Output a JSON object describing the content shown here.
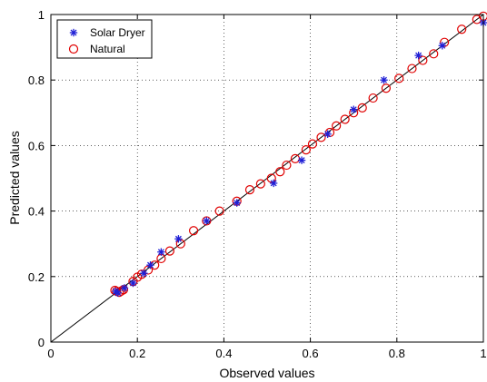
{
  "chart_data": {
    "type": "scatter",
    "xlabel": "Observed values",
    "ylabel": "Predicted values",
    "xlim": [
      0,
      1
    ],
    "ylim": [
      0,
      1
    ],
    "xticks": [
      "0",
      "0.2",
      "0.4",
      "0.6",
      "0.8",
      "1"
    ],
    "yticks": [
      "0",
      "0.2",
      "0.4",
      "0.6",
      "0.8",
      "1"
    ],
    "grid": true,
    "grid_style": "dotted",
    "legend_position": "top-left",
    "reference_line": {
      "from": [
        0,
        0
      ],
      "to": [
        1,
        1
      ],
      "color": "#000000"
    },
    "series": [
      {
        "name": "Solar Dryer",
        "marker": "asterisk",
        "color": "#1f1fd6",
        "points": [
          [
            0.15,
            0.155
          ],
          [
            0.155,
            0.15
          ],
          [
            0.17,
            0.165
          ],
          [
            0.19,
            0.18
          ],
          [
            0.215,
            0.21
          ],
          [
            0.23,
            0.235
          ],
          [
            0.255,
            0.275
          ],
          [
            0.295,
            0.315
          ],
          [
            0.36,
            0.37
          ],
          [
            0.43,
            0.425
          ],
          [
            0.515,
            0.485
          ],
          [
            0.58,
            0.555
          ],
          [
            0.64,
            0.635
          ],
          [
            0.7,
            0.71
          ],
          [
            0.77,
            0.8
          ],
          [
            0.85,
            0.875
          ],
          [
            0.905,
            0.905
          ],
          [
            1.0,
            0.975
          ]
        ]
      },
      {
        "name": "Natural",
        "marker": "circle",
        "color": "#e00000",
        "points": [
          [
            0.148,
            0.158
          ],
          [
            0.152,
            0.155
          ],
          [
            0.158,
            0.152
          ],
          [
            0.163,
            0.156
          ],
          [
            0.168,
            0.16
          ],
          [
            0.19,
            0.185
          ],
          [
            0.2,
            0.198
          ],
          [
            0.21,
            0.207
          ],
          [
            0.225,
            0.22
          ],
          [
            0.24,
            0.235
          ],
          [
            0.255,
            0.255
          ],
          [
            0.275,
            0.278
          ],
          [
            0.3,
            0.3
          ],
          [
            0.33,
            0.34
          ],
          [
            0.36,
            0.37
          ],
          [
            0.39,
            0.4
          ],
          [
            0.43,
            0.43
          ],
          [
            0.46,
            0.465
          ],
          [
            0.485,
            0.483
          ],
          [
            0.51,
            0.5
          ],
          [
            0.53,
            0.52
          ],
          [
            0.545,
            0.54
          ],
          [
            0.565,
            0.56
          ],
          [
            0.59,
            0.587
          ],
          [
            0.605,
            0.605
          ],
          [
            0.625,
            0.625
          ],
          [
            0.645,
            0.64
          ],
          [
            0.66,
            0.66
          ],
          [
            0.68,
            0.68
          ],
          [
            0.7,
            0.7
          ],
          [
            0.72,
            0.715
          ],
          [
            0.745,
            0.745
          ],
          [
            0.775,
            0.775
          ],
          [
            0.805,
            0.805
          ],
          [
            0.835,
            0.835
          ],
          [
            0.86,
            0.86
          ],
          [
            0.885,
            0.88
          ],
          [
            0.91,
            0.915
          ],
          [
            0.95,
            0.955
          ],
          [
            0.985,
            0.985
          ],
          [
            1.0,
            0.995
          ]
        ]
      }
    ]
  }
}
